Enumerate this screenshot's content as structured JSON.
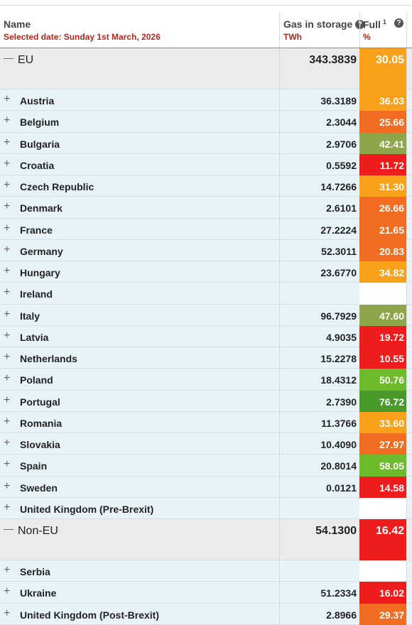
{
  "header": {
    "name": "Name",
    "selected_date": "Selected date: Sunday 1st March, 2026",
    "gas": "Gas in storage",
    "gas_unit": "TWh",
    "full": "Full",
    "full_note": "1",
    "full_unit": "%"
  },
  "groups": [
    {
      "name": "EU",
      "gas": "343.3839",
      "full": "30.05",
      "color": "#f9a11b",
      "members": [
        {
          "name": "Austria",
          "gas": "36.3189",
          "full": "36.03",
          "color": "#f9a11b"
        },
        {
          "name": "Belgium",
          "gas": "2.3044",
          "full": "25.66",
          "color": "#f26d21"
        },
        {
          "name": "Bulgaria",
          "gas": "2.9706",
          "full": "42.41",
          "color": "#8fa54a"
        },
        {
          "name": "Croatia",
          "gas": "0.5592",
          "full": "11.72",
          "color": "#ee1c1c"
        },
        {
          "name": "Czech Republic",
          "gas": "14.7266",
          "full": "31.30",
          "color": "#f9a11b"
        },
        {
          "name": "Denmark",
          "gas": "2.6101",
          "full": "26.66",
          "color": "#f26d21"
        },
        {
          "name": "France",
          "gas": "27.2224",
          "full": "21.65",
          "color": "#f26d21"
        },
        {
          "name": "Germany",
          "gas": "52.3011",
          "full": "20.83",
          "color": "#f26d21"
        },
        {
          "name": "Hungary",
          "gas": "23.6770",
          "full": "34.82",
          "color": "#f9a11b"
        },
        {
          "name": "Ireland",
          "gas": null,
          "full": null,
          "color": null
        },
        {
          "name": "Italy",
          "gas": "96.7929",
          "full": "47.60",
          "color": "#8fa54a"
        },
        {
          "name": "Latvia",
          "gas": "4.9035",
          "full": "19.72",
          "color": "#ee1c1c"
        },
        {
          "name": "Netherlands",
          "gas": "15.2278",
          "full": "10.55",
          "color": "#ee1c1c"
        },
        {
          "name": "Poland",
          "gas": "18.4312",
          "full": "50.76",
          "color": "#6dbb2a"
        },
        {
          "name": "Portugal",
          "gas": "2.7390",
          "full": "76.72",
          "color": "#4a9a2a"
        },
        {
          "name": "Romania",
          "gas": "11.3766",
          "full": "33.60",
          "color": "#f9a11b"
        },
        {
          "name": "Slovakia",
          "gas": "10.4090",
          "full": "27.97",
          "color": "#f26d21"
        },
        {
          "name": "Spain",
          "gas": "20.8014",
          "full": "58.05",
          "color": "#6dbb2a"
        },
        {
          "name": "Sweden",
          "gas": "0.0121",
          "full": "14.58",
          "color": "#ee1c1c"
        },
        {
          "name": "United Kingdom (Pre-Brexit)",
          "gas": null,
          "full": null,
          "color": null
        }
      ]
    },
    {
      "name": "Non-EU",
      "gas": "54.1300",
      "full": "16.42",
      "color": "#ee1c1c",
      "members": [
        {
          "name": "Serbia",
          "gas": null,
          "full": null,
          "color": null
        },
        {
          "name": "Ukraine",
          "gas": "51.2334",
          "full": "16.02",
          "color": "#ee1c1c"
        },
        {
          "name": "United Kingdom (Post-Brexit)",
          "gas": "2.8966",
          "full": "29.37",
          "color": "#f26d21"
        }
      ]
    }
  ]
}
